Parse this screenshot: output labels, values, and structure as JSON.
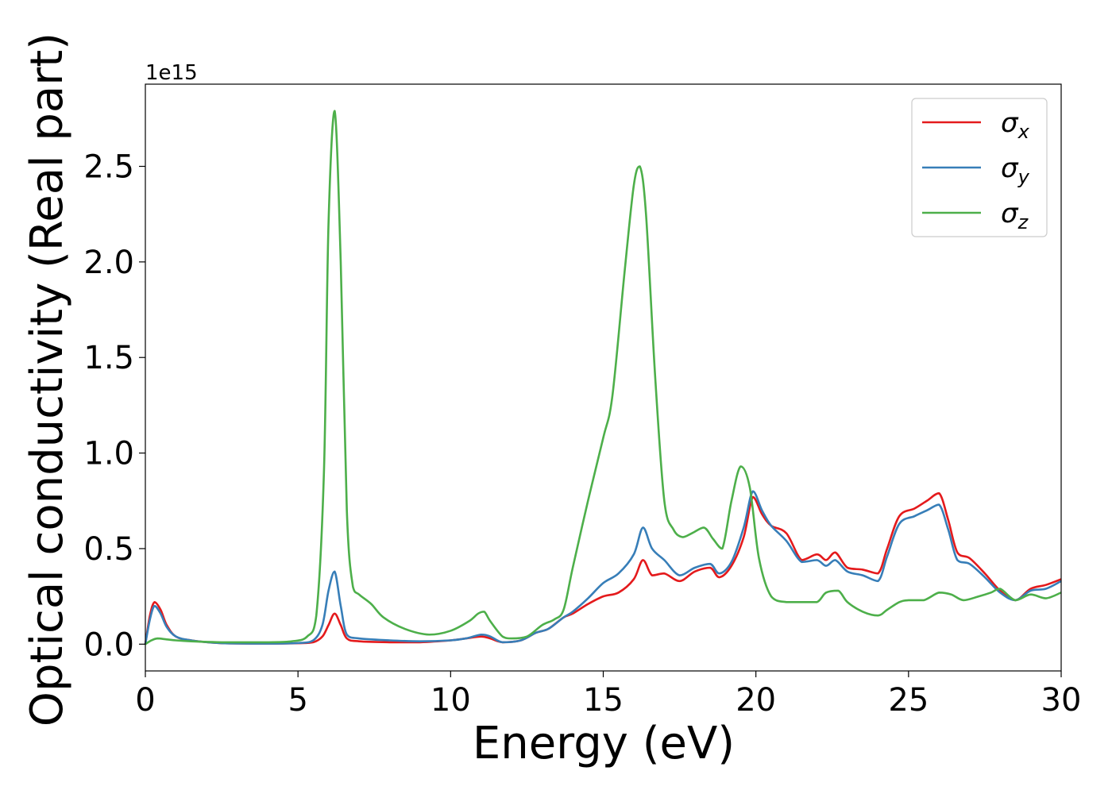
{
  "chart_data": {
    "type": "line",
    "xlabel": "Energy (eV)",
    "ylabel": "Optical conductivity (Real part)",
    "y_offset_label": "1e15",
    "xlim": [
      0,
      30
    ],
    "ylim": [
      -0.14,
      2.93
    ],
    "x_ticks": [
      0,
      5,
      10,
      15,
      20,
      25,
      30
    ],
    "x_tick_labels": [
      "0",
      "5",
      "10",
      "15",
      "20",
      "25",
      "30"
    ],
    "y_ticks": [
      0.0,
      0.5,
      1.0,
      1.5,
      2.0,
      2.5
    ],
    "y_tick_labels": [
      "0.0",
      "0.5",
      "1.0",
      "1.5",
      "2.0",
      "2.5"
    ],
    "grid": false,
    "legend_position": "top-right",
    "series": [
      {
        "name": "σx",
        "symbol": "σ",
        "subscript": "x",
        "color": "#e41a1c",
        "x": [
          0,
          0.15,
          0.3,
          0.5,
          0.7,
          1.0,
          1.5,
          2.5,
          4.0,
          5.0,
          5.5,
          5.8,
          6.0,
          6.2,
          6.4,
          6.6,
          7.0,
          8.0,
          9.0,
          10.0,
          10.5,
          11.0,
          11.3,
          11.7,
          12.3,
          12.8,
          13.2,
          13.7,
          14.0,
          14.5,
          15.0,
          15.5,
          16.0,
          16.3,
          16.6,
          17.0,
          17.5,
          18.0,
          18.5,
          18.8,
          19.2,
          19.6,
          19.9,
          20.2,
          20.5,
          21.0,
          21.5,
          22.0,
          22.3,
          22.6,
          23.0,
          23.5,
          24.0,
          24.3,
          24.7,
          25.2,
          25.6,
          26.0,
          26.3,
          26.6,
          27.0,
          27.5,
          28.0,
          28.5,
          29.0,
          29.5,
          30.0
        ],
        "y": [
          0.0,
          0.15,
          0.22,
          0.18,
          0.1,
          0.04,
          0.02,
          0.005,
          0.003,
          0.005,
          0.01,
          0.04,
          0.1,
          0.16,
          0.1,
          0.03,
          0.015,
          0.01,
          0.01,
          0.02,
          0.03,
          0.04,
          0.03,
          0.01,
          0.02,
          0.06,
          0.08,
          0.14,
          0.16,
          0.21,
          0.25,
          0.27,
          0.34,
          0.44,
          0.36,
          0.37,
          0.33,
          0.38,
          0.4,
          0.35,
          0.41,
          0.56,
          0.77,
          0.68,
          0.62,
          0.58,
          0.44,
          0.47,
          0.44,
          0.48,
          0.4,
          0.39,
          0.37,
          0.5,
          0.67,
          0.71,
          0.75,
          0.79,
          0.65,
          0.48,
          0.45,
          0.37,
          0.28,
          0.23,
          0.29,
          0.31,
          0.34
        ]
      },
      {
        "name": "σy",
        "symbol": "σ",
        "subscript": "y",
        "color": "#377eb8",
        "x": [
          0,
          0.15,
          0.3,
          0.5,
          0.7,
          1.0,
          1.5,
          2.5,
          4.0,
          5.0,
          5.5,
          5.8,
          6.0,
          6.2,
          6.4,
          6.6,
          7.0,
          8.0,
          9.0,
          10.0,
          10.5,
          11.0,
          11.3,
          11.7,
          12.3,
          12.8,
          13.2,
          13.7,
          14.0,
          14.5,
          15.0,
          15.5,
          16.0,
          16.3,
          16.6,
          17.0,
          17.5,
          18.0,
          18.5,
          18.8,
          19.2,
          19.6,
          19.9,
          20.2,
          20.5,
          21.0,
          21.5,
          22.0,
          22.3,
          22.6,
          23.0,
          23.5,
          24.0,
          24.3,
          24.7,
          25.2,
          25.6,
          26.0,
          26.3,
          26.6,
          27.0,
          27.5,
          28.0,
          28.5,
          29.0,
          29.5,
          30.0
        ],
        "y": [
          0.0,
          0.13,
          0.2,
          0.16,
          0.09,
          0.04,
          0.02,
          0.005,
          0.003,
          0.006,
          0.02,
          0.1,
          0.28,
          0.38,
          0.2,
          0.05,
          0.03,
          0.02,
          0.015,
          0.02,
          0.03,
          0.05,
          0.04,
          0.01,
          0.02,
          0.06,
          0.08,
          0.14,
          0.17,
          0.24,
          0.32,
          0.37,
          0.47,
          0.61,
          0.5,
          0.44,
          0.36,
          0.4,
          0.42,
          0.37,
          0.43,
          0.61,
          0.8,
          0.7,
          0.62,
          0.54,
          0.43,
          0.44,
          0.41,
          0.44,
          0.38,
          0.36,
          0.33,
          0.46,
          0.63,
          0.67,
          0.7,
          0.73,
          0.6,
          0.44,
          0.42,
          0.35,
          0.27,
          0.23,
          0.28,
          0.29,
          0.33
        ]
      },
      {
        "name": "σz",
        "symbol": "σ",
        "subscript": "z",
        "color": "#4daf4a",
        "x": [
          0,
          0.2,
          0.4,
          0.7,
          1.0,
          1.5,
          2.5,
          4.0,
          4.8,
          5.3,
          5.6,
          5.85,
          6.0,
          6.2,
          6.4,
          6.6,
          6.8,
          7.0,
          7.4,
          7.8,
          8.5,
          9.3,
          10.0,
          10.6,
          10.9,
          11.1,
          11.3,
          11.7,
          12.0,
          12.5,
          13.0,
          13.4,
          13.7,
          14.0,
          14.5,
          15.0,
          15.3,
          15.7,
          16.0,
          16.2,
          16.4,
          16.7,
          17.0,
          17.3,
          17.6,
          17.9,
          18.3,
          18.6,
          18.9,
          19.2,
          19.5,
          19.8,
          20.1,
          20.5,
          21.0,
          21.5,
          22.0,
          22.3,
          22.7,
          23.0,
          23.5,
          24.0,
          24.3,
          24.7,
          25.0,
          25.5,
          26.0,
          26.4,
          26.8,
          27.3,
          27.7,
          28.0,
          28.5,
          29.0,
          29.5,
          30.0
        ],
        "y": [
          0.0,
          0.02,
          0.03,
          0.025,
          0.02,
          0.015,
          0.01,
          0.01,
          0.015,
          0.04,
          0.15,
          0.9,
          2.2,
          2.79,
          2.0,
          0.7,
          0.3,
          0.26,
          0.21,
          0.14,
          0.08,
          0.05,
          0.07,
          0.12,
          0.16,
          0.17,
          0.12,
          0.04,
          0.03,
          0.04,
          0.1,
          0.13,
          0.18,
          0.4,
          0.75,
          1.08,
          1.3,
          1.95,
          2.4,
          2.5,
          2.25,
          1.4,
          0.75,
          0.6,
          0.56,
          0.58,
          0.61,
          0.55,
          0.5,
          0.75,
          0.93,
          0.82,
          0.45,
          0.25,
          0.22,
          0.22,
          0.22,
          0.27,
          0.28,
          0.22,
          0.17,
          0.15,
          0.18,
          0.22,
          0.23,
          0.23,
          0.27,
          0.26,
          0.23,
          0.25,
          0.27,
          0.29,
          0.23,
          0.26,
          0.24,
          0.27
        ]
      }
    ]
  }
}
